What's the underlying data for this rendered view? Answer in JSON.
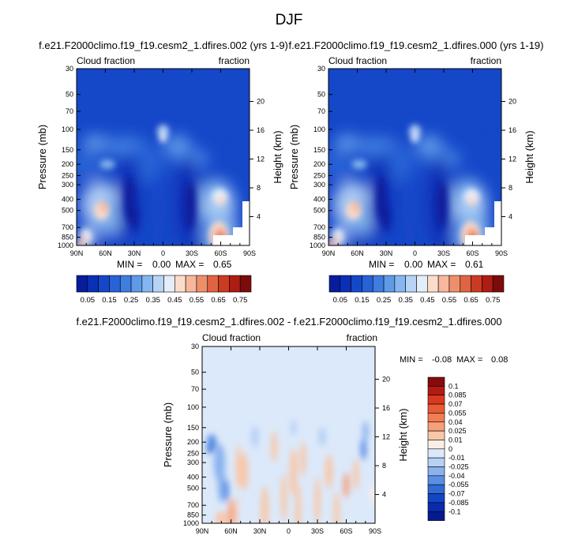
{
  "figure": {
    "title": "DJF"
  },
  "chart_data": [
    {
      "type": "heatmap",
      "title": "f.e21.F2000climo.f19_f19.cesm2_1.dfires.002 (yrs 1-9)",
      "left_label": "Cloud fraction",
      "right_label": "fraction",
      "xlabel": "",
      "ylabel": "Pressure (mb)",
      "y2label": "Height (km)",
      "x_ticks": [
        "90N",
        "60N",
        "30N",
        "0",
        "30S",
        "60S",
        "90S"
      ],
      "x_range": [
        90,
        -90
      ],
      "y_ticks": [
        30,
        50,
        70,
        100,
        150,
        200,
        250,
        300,
        400,
        500,
        700,
        850,
        1000
      ],
      "y_range": [
        30,
        1000
      ],
      "y2_ticks": [
        20,
        16,
        12,
        8,
        4
      ],
      "stats": {
        "min_label": "MIN =",
        "min": "0.00",
        "max_label": "MAX =",
        "max": "0.65"
      },
      "colorbar_labels": [
        "0.05",
        "0.15",
        "0.25",
        "0.35",
        "0.45",
        "0.55",
        "0.65",
        "0.75"
      ],
      "contour_levels": [
        0.05,
        0.1,
        0.15,
        0.2,
        0.25,
        0.3,
        0.35,
        0.4,
        0.45,
        0.5,
        0.55,
        0.6,
        0.65,
        0.7,
        0.75
      ],
      "colors": [
        "#081d9c",
        "#0b2fb5",
        "#1547c9",
        "#2762d6",
        "#3f7de0",
        "#5e9ae8",
        "#86b6ef",
        "#b7d3f6",
        "#e4eefb",
        "#fbdccb",
        "#f6b79c",
        "#ee8f6c",
        "#e06443",
        "#cb3b22",
        "#ad1d12",
        "#7d0b0b"
      ]
    },
    {
      "type": "heatmap",
      "title": "f.e21.F2000climo.f19_f19.cesm2_1.dfires.000 (yrs 1-19)",
      "left_label": "Cloud fraction",
      "right_label": "fraction",
      "xlabel": "",
      "ylabel": "Pressure (mb)",
      "y2label": "Height (km)",
      "x_ticks": [
        "90N",
        "60N",
        "30N",
        "0",
        "30S",
        "60S",
        "90S"
      ],
      "x_range": [
        90,
        -90
      ],
      "y_ticks": [
        30,
        50,
        70,
        100,
        150,
        200,
        250,
        300,
        400,
        500,
        700,
        850,
        1000
      ],
      "y_range": [
        30,
        1000
      ],
      "y2_ticks": [
        20,
        16,
        12,
        8,
        4
      ],
      "stats": {
        "min_label": "MIN =",
        "min": "0.00",
        "max_label": "MAX =",
        "max": "0.61"
      },
      "colorbar_labels": [
        "0.05",
        "0.15",
        "0.25",
        "0.35",
        "0.45",
        "0.55",
        "0.65",
        "0.75"
      ],
      "contour_levels": [
        0.05,
        0.1,
        0.15,
        0.2,
        0.25,
        0.3,
        0.35,
        0.4,
        0.45,
        0.5,
        0.55,
        0.6,
        0.65,
        0.7,
        0.75
      ],
      "colors": [
        "#081d9c",
        "#0b2fb5",
        "#1547c9",
        "#2762d6",
        "#3f7de0",
        "#5e9ae8",
        "#86b6ef",
        "#b7d3f6",
        "#e4eefb",
        "#fbdccb",
        "#f6b79c",
        "#ee8f6c",
        "#e06443",
        "#cb3b22",
        "#ad1d12",
        "#7d0b0b"
      ]
    },
    {
      "type": "heatmap",
      "title": "f.e21.F2000climo.f19_f19.cesm2_1.dfires.002 - f.e21.F2000climo.f19_f19.cesm2_1.dfires.000",
      "left_label": "Cloud fraction",
      "right_label": "fraction",
      "xlabel": "",
      "ylabel": "Pressure (mb)",
      "y2label": "Height (km)",
      "x_ticks": [
        "90N",
        "60N",
        "30N",
        "0",
        "30S",
        "60S",
        "90S"
      ],
      "x_range": [
        90,
        -90
      ],
      "y_ticks": [
        30,
        50,
        70,
        100,
        150,
        200,
        250,
        300,
        400,
        500,
        700,
        850,
        1000
      ],
      "y_range": [
        30,
        1000
      ],
      "y2_ticks": [
        20,
        16,
        12,
        8,
        4
      ],
      "stats": {
        "min_label": "MIN =",
        "min": "-0.08",
        "max_label": "MAX =",
        "max": "0.08"
      },
      "colorbar_labels": [
        "0.1",
        "0.085",
        "0.07",
        "0.055",
        "0.04",
        "0.025",
        "0.01",
        "0",
        "-0.01",
        "-0.025",
        "-0.04",
        "-0.055",
        "-0.07",
        "-0.085",
        "-0.1"
      ],
      "colors": [
        "#850c0c",
        "#b31b12",
        "#d8391f",
        "#ea5a35",
        "#f27d52",
        "#f6a07a",
        "#f8c7a9",
        "#fbeee3",
        "#dce9fa",
        "#b7d0f5",
        "#8ab2ee",
        "#5a8fe4",
        "#3169d6",
        "#1445c5",
        "#0a2bae",
        "#061a8f"
      ]
    }
  ]
}
